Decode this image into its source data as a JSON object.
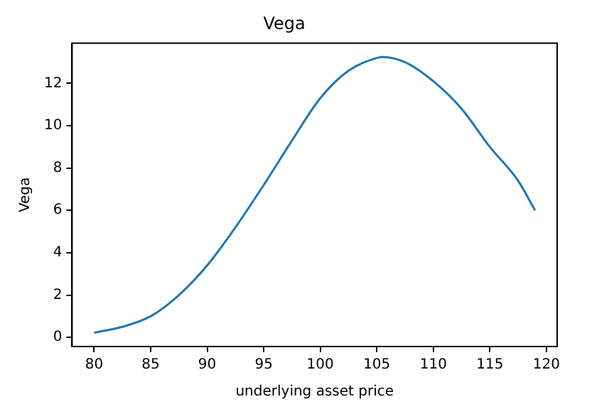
{
  "chart_data": {
    "type": "line",
    "title": "Vega",
    "xlabel": "underlying asset price",
    "ylabel": "Vega",
    "x": [
      80,
      82.5,
      85,
      87.5,
      90,
      92.5,
      95,
      97.5,
      100,
      102.5,
      105,
      105.5,
      107.5,
      110,
      112.5,
      115,
      117.5,
      119
    ],
    "series": [
      {
        "color": "#1f77b4",
        "values": [
          0.22,
          0.5,
          1.0,
          2.0,
          3.4,
          5.2,
          7.2,
          9.3,
          11.3,
          12.6,
          13.2,
          13.25,
          13.0,
          12.1,
          10.8,
          9.0,
          7.4,
          6.0
        ]
      }
    ],
    "xlim": [
      78.05,
      120.95
    ],
    "xticks": [
      80,
      85,
      90,
      95,
      100,
      105,
      110,
      115,
      120
    ],
    "ylim": [
      -0.43,
      13.9
    ],
    "yticks": [
      0,
      2,
      4,
      6,
      8,
      10,
      12
    ],
    "grid": false,
    "legend": false,
    "marker": "none",
    "line_style": "solid"
  }
}
